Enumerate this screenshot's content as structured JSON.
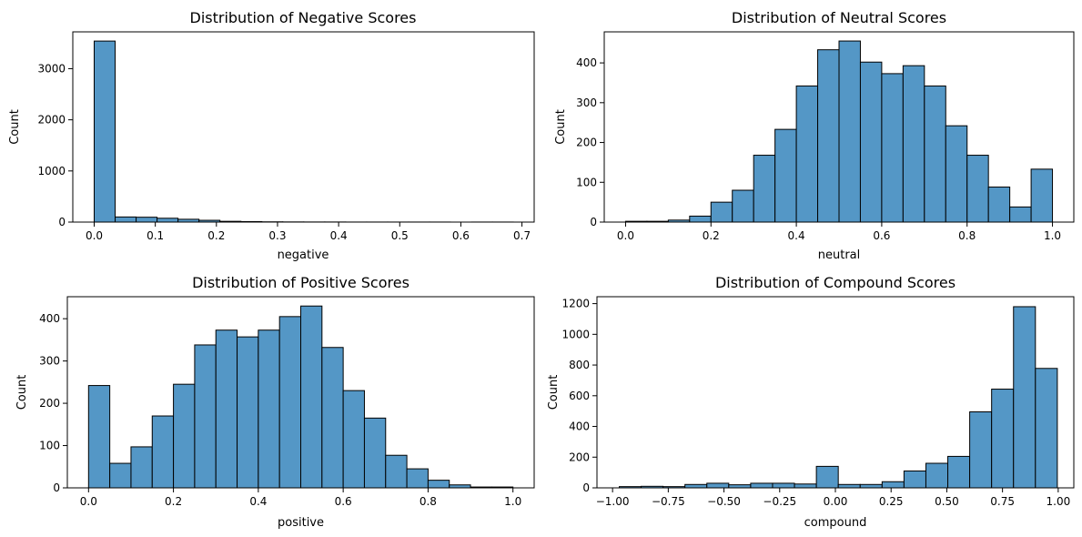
{
  "chart_data": [
    {
      "type": "histogram",
      "title": "Distribution of Negative Scores",
      "xlabel": "negative",
      "ylabel": "Count",
      "bin_start": 0.0,
      "bin_width": 0.0343,
      "values": [
        3540,
        100,
        95,
        75,
        55,
        35,
        15,
        10,
        5,
        3,
        2,
        2,
        1,
        1,
        1,
        1,
        1,
        0,
        1,
        1
      ],
      "xlim": [
        -0.035,
        0.72
      ],
      "ylim": [
        0,
        3720
      ],
      "xticks": [
        0.0,
        0.1,
        0.2,
        0.3,
        0.4,
        0.5,
        0.6,
        0.7
      ],
      "xtick_labels": [
        "0.0",
        "0.1",
        "0.2",
        "0.3",
        "0.4",
        "0.5",
        "0.6",
        "0.7"
      ],
      "yticks": [
        0,
        1000,
        2000,
        3000
      ],
      "ytick_labels": [
        "0",
        "1000",
        "2000",
        "3000"
      ],
      "grid": false,
      "color": "#5497c6"
    },
    {
      "type": "histogram",
      "title": "Distribution of Neutral Scores",
      "xlabel": "neutral",
      "ylabel": "Count",
      "bin_start": 0.0,
      "bin_width": 0.05,
      "values": [
        2,
        2,
        5,
        15,
        50,
        80,
        168,
        233,
        342,
        433,
        455,
        402,
        373,
        393,
        342,
        242,
        168,
        88,
        38,
        133
      ],
      "xlim": [
        -0.05,
        1.05
      ],
      "ylim": [
        0,
        478
      ],
      "xticks": [
        0.0,
        0.2,
        0.4,
        0.6,
        0.8,
        1.0
      ],
      "xtick_labels": [
        "0.0",
        "0.2",
        "0.4",
        "0.6",
        "0.8",
        "1.0"
      ],
      "yticks": [
        0,
        100,
        200,
        300,
        400
      ],
      "ytick_labels": [
        "0",
        "100",
        "200",
        "300",
        "400"
      ],
      "grid": false,
      "color": "#5497c6"
    },
    {
      "type": "histogram",
      "title": "Distribution of Positive Scores",
      "xlabel": "positive",
      "ylabel": "Count",
      "bin_start": 0.0,
      "bin_width": 0.05,
      "values": [
        242,
        58,
        97,
        170,
        245,
        338,
        373,
        357,
        373,
        405,
        430,
        332,
        230,
        165,
        77,
        45,
        18,
        7,
        2,
        2
      ],
      "xlim": [
        -0.05,
        1.05
      ],
      "ylim": [
        0,
        452
      ],
      "xticks": [
        0.0,
        0.2,
        0.4,
        0.6,
        0.8,
        1.0
      ],
      "xtick_labels": [
        "0.0",
        "0.2",
        "0.4",
        "0.6",
        "0.8",
        "1.0"
      ],
      "yticks": [
        0,
        100,
        200,
        300,
        400
      ],
      "ytick_labels": [
        "0",
        "100",
        "200",
        "300",
        "400"
      ],
      "grid": false,
      "color": "#5497c6"
    },
    {
      "type": "histogram",
      "title": "Distribution of Compound Scores",
      "xlabel": "compound",
      "ylabel": "Count",
      "bin_start": -0.97,
      "bin_width": 0.0983,
      "values": [
        8,
        10,
        8,
        22,
        30,
        20,
        30,
        30,
        25,
        140,
        22,
        22,
        40,
        110,
        160,
        205,
        495,
        643,
        1180,
        778
      ],
      "xlim": [
        -1.07,
        1.07
      ],
      "ylim": [
        0,
        1245
      ],
      "xticks": [
        -1.0,
        -0.75,
        -0.5,
        -0.25,
        0.0,
        0.25,
        0.5,
        0.75,
        1.0
      ],
      "xtick_labels": [
        "−1.00",
        "−0.75",
        "−0.50",
        "−0.25",
        "0.00",
        "0.25",
        "0.50",
        "0.75",
        "1.00"
      ],
      "yticks": [
        0,
        200,
        400,
        600,
        800,
        1000,
        1200
      ],
      "ytick_labels": [
        "0",
        "200",
        "400",
        "600",
        "800",
        "1000",
        "1200"
      ],
      "grid": false,
      "color": "#5497c6"
    }
  ]
}
